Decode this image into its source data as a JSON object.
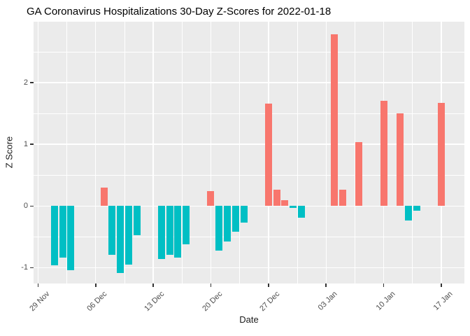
{
  "chart_data": {
    "type": "bar",
    "title": "GA Coronavirus Hospitalizations 30-Day Z-Scores for 2022-01-18",
    "xlabel": "Date",
    "ylabel": "Z Score",
    "legend": "none",
    "grid": "on",
    "panel_background": "#EBEBEB",
    "gridline_color": "#FFFFFF",
    "tick_mark_color": "#333333",
    "tick_label_color": "#4D4D4D",
    "bar_colors": {
      "positive": "#F8766D",
      "negative": "#00BFC4"
    },
    "ylim": [
      -1.26,
      2.99
    ],
    "y_ticks": [
      -1,
      0,
      1,
      2
    ],
    "x_ticks": [
      {
        "label": "29 Nov",
        "date": "2021-11-29"
      },
      {
        "label": "06 Dec",
        "date": "2021-12-06"
      },
      {
        "label": "13 Dec",
        "date": "2021-12-13"
      },
      {
        "label": "20 Dec",
        "date": "2021-12-20"
      },
      {
        "label": "27 Dec",
        "date": "2021-12-27"
      },
      {
        "label": "03 Jan",
        "date": "2022-01-03"
      },
      {
        "label": "10 Jan",
        "date": "2022-01-10"
      },
      {
        "label": "17 Jan",
        "date": "2022-01-17"
      }
    ],
    "points": [
      {
        "date": "2021-12-01",
        "z": -0.96
      },
      {
        "date": "2021-12-02",
        "z": -0.84
      },
      {
        "date": "2021-12-03",
        "z": -1.04
      },
      {
        "date": "2021-12-07",
        "z": 0.3
      },
      {
        "date": "2021-12-08",
        "z": -0.79
      },
      {
        "date": "2021-12-09",
        "z": -1.08
      },
      {
        "date": "2021-12-10",
        "z": -0.95
      },
      {
        "date": "2021-12-11",
        "z": -0.47
      },
      {
        "date": "2021-12-14",
        "z": -0.86
      },
      {
        "date": "2021-12-15",
        "z": -0.79
      },
      {
        "date": "2021-12-16",
        "z": -0.84
      },
      {
        "date": "2021-12-17",
        "z": -0.62
      },
      {
        "date": "2021-12-20",
        "z": 0.24
      },
      {
        "date": "2021-12-21",
        "z": -0.72
      },
      {
        "date": "2021-12-22",
        "z": -0.57
      },
      {
        "date": "2021-12-23",
        "z": -0.42
      },
      {
        "date": "2021-12-24",
        "z": -0.27
      },
      {
        "date": "2021-12-27",
        "z": 1.66
      },
      {
        "date": "2021-12-28",
        "z": 0.26
      },
      {
        "date": "2021-12-29",
        "z": 0.09
      },
      {
        "date": "2021-12-30",
        "z": -0.03
      },
      {
        "date": "2021-12-31",
        "z": -0.19
      },
      {
        "date": "2022-01-04",
        "z": 2.78
      },
      {
        "date": "2022-01-05",
        "z": 0.26
      },
      {
        "date": "2022-01-07",
        "z": 1.04
      },
      {
        "date": "2022-01-10",
        "z": 1.71
      },
      {
        "date": "2022-01-12",
        "z": 1.5
      },
      {
        "date": "2022-01-13",
        "z": -0.23
      },
      {
        "date": "2022-01-14",
        "z": -0.08
      },
      {
        "date": "2022-01-17",
        "z": 1.67
      }
    ]
  }
}
